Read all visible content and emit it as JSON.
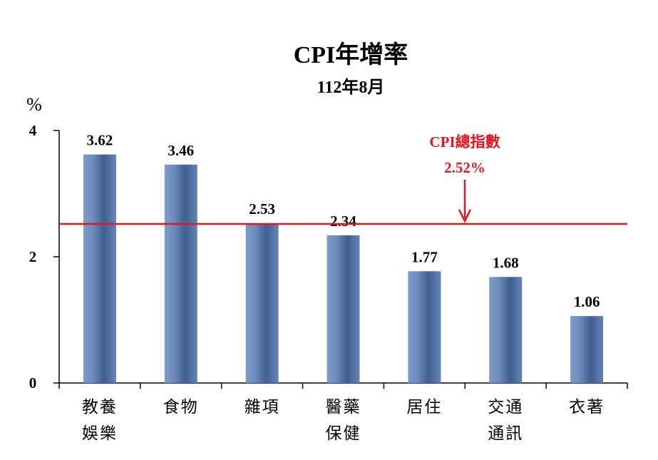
{
  "chart_data": {
    "type": "bar",
    "title": "CPI年增率",
    "subtitle": "112年8月",
    "ylabel": "%",
    "ylim": [
      0,
      4
    ],
    "yticks": [
      0,
      2,
      4
    ],
    "grid": false,
    "categories": [
      [
        "教養",
        "娛樂"
      ],
      [
        "食物"
      ],
      [
        "雜項"
      ],
      [
        "醫藥",
        "保健"
      ],
      [
        "居住"
      ],
      [
        "交通",
        "通訊"
      ],
      [
        "衣著"
      ]
    ],
    "values": [
      3.62,
      3.46,
      2.53,
      2.34,
      1.77,
      1.68,
      1.06
    ],
    "data_labels": [
      "3.62",
      "3.46",
      "2.53",
      "2.34",
      "1.77",
      "1.68",
      "1.06"
    ],
    "reference_line": {
      "value": 2.52,
      "label_line1": "CPI總指數",
      "label_line2": "2.52%",
      "color": "#e8141c"
    },
    "bar_color": "#4f6f9c"
  }
}
